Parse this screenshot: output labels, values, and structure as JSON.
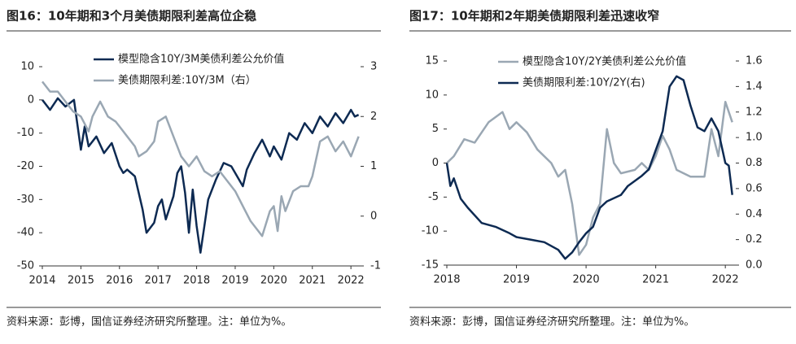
{
  "chart_data": [
    {
      "type": "line",
      "title": "图16：10年期和3个月美债期限利差高位企稳",
      "source": "资料来源：彭博，国信证券经济研究所整理。注：单位为%。",
      "xlim": [
        2014,
        2022.25
      ],
      "xticks": [
        2014,
        2015,
        2016,
        2017,
        2018,
        2019,
        2020,
        2021,
        2022
      ],
      "ylim": [
        -50,
        10
      ],
      "yticks": [
        10,
        0,
        -10,
        -20,
        -30,
        -40,
        -50
      ],
      "y2lim": [
        -1,
        3
      ],
      "y2ticks": [
        3,
        2,
        1,
        0,
        -1
      ],
      "series": [
        {
          "name": "模型隐含10Y/3M美债利差公允价值",
          "color": "#0d2a52",
          "x": [
            2014.0,
            2014.2,
            2014.4,
            2014.6,
            2014.82,
            2015.0,
            2015.1,
            2015.2,
            2015.4,
            2015.6,
            2015.8,
            2016.0,
            2016.1,
            2016.2,
            2016.4,
            2016.6,
            2016.7,
            2016.9,
            2017.0,
            2017.1,
            2017.2,
            2017.4,
            2017.5,
            2017.6,
            2017.7,
            2017.8,
            2017.9,
            2018.0,
            2018.1,
            2018.2,
            2018.3,
            2018.5,
            2018.7,
            2018.9,
            2019.0,
            2019.2,
            2019.3,
            2019.5,
            2019.7,
            2019.9,
            2020.0,
            2020.2,
            2020.4,
            2020.6,
            2020.8,
            2021.0,
            2021.2,
            2021.4,
            2021.6,
            2021.8,
            2022.0,
            2022.1,
            2022.2
          ],
          "values": [
            0,
            -3,
            0.5,
            -2,
            0,
            -15,
            -8,
            -14,
            -11,
            -16,
            -13,
            -20,
            -22,
            -21,
            -23,
            -33,
            -40,
            -37,
            -32,
            -30,
            -36,
            -29,
            -22,
            -20,
            -28,
            -40,
            -27,
            -38,
            -46,
            -38,
            -30,
            -24,
            -19,
            -20,
            -22,
            -26,
            -21,
            -16,
            -12,
            -17,
            -14,
            -18,
            -10,
            -12,
            -7,
            -10,
            -5,
            -8,
            -4,
            -7,
            -3,
            -5,
            -4.5
          ]
        },
        {
          "name": "美债期限利差:10Y/3M（右）",
          "color": "#9aa7b3",
          "axis": "y2",
          "x": [
            2014.0,
            2014.2,
            2014.4,
            2014.6,
            2014.8,
            2015.0,
            2015.2,
            2015.3,
            2015.5,
            2015.7,
            2015.9,
            2016.0,
            2016.2,
            2016.4,
            2016.5,
            2016.7,
            2016.9,
            2017.0,
            2017.2,
            2017.4,
            2017.6,
            2017.8,
            2018.0,
            2018.2,
            2018.4,
            2018.6,
            2018.8,
            2019.0,
            2019.2,
            2019.4,
            2019.6,
            2019.7,
            2019.9,
            2020.0,
            2020.1,
            2020.2,
            2020.3,
            2020.5,
            2020.7,
            2020.9,
            2021.0,
            2021.2,
            2021.4,
            2021.6,
            2021.8,
            2022.0,
            2022.1,
            2022.2
          ],
          "values": [
            2.7,
            2.5,
            2.5,
            2.3,
            2.1,
            2.0,
            1.7,
            2.0,
            2.3,
            2.0,
            1.9,
            1.8,
            1.6,
            1.4,
            1.2,
            1.3,
            1.5,
            1.9,
            2.0,
            1.6,
            1.2,
            1.0,
            1.2,
            0.9,
            0.8,
            0.9,
            0.7,
            0.5,
            0.2,
            -0.1,
            -0.3,
            -0.4,
            0.1,
            0.2,
            -0.3,
            0.4,
            0.1,
            0.5,
            0.6,
            0.6,
            0.8,
            1.5,
            1.6,
            1.3,
            1.5,
            1.2,
            1.4,
            1.6
          ]
        }
      ]
    },
    {
      "type": "line",
      "title": "图17：10年期和2年期美债期限利差迅速收窄",
      "source": "资料来源：彭博，国信证券经济研究所整理。注：单位为%。",
      "xlim": [
        2018,
        2022.15
      ],
      "xticks": [
        2018,
        2019,
        2020,
        2021,
        2022
      ],
      "ylim": [
        -15,
        15
      ],
      "yticks": [
        15,
        10,
        5,
        0,
        -5,
        -10,
        -15
      ],
      "y2lim": [
        0,
        1.6
      ],
      "y2ticks": [
        1.6,
        1.4,
        1.2,
        {
          "value": 1,
          "label": "1.0"
        },
        0.8,
        0.6,
        0.4,
        0.2,
        {
          "value": 0,
          "label": "0.0"
        }
      ],
      "series": [
        {
          "name": "模型隐含10Y/2Y美债利差公允价值",
          "color": "#9aa7b3",
          "x": [
            2018.0,
            2018.1,
            2018.25,
            2018.4,
            2018.6,
            2018.8,
            2018.9,
            2019.0,
            2019.15,
            2019.3,
            2019.5,
            2019.6,
            2019.7,
            2019.8,
            2019.9,
            2020.0,
            2020.1,
            2020.2,
            2020.3,
            2020.4,
            2020.5,
            2020.7,
            2020.8,
            2020.9,
            2021.0,
            2021.1,
            2021.2,
            2021.3,
            2021.5,
            2021.7,
            2021.8,
            2021.9,
            2022.0,
            2022.1
          ],
          "values": [
            0,
            1,
            3.5,
            3,
            6,
            7.5,
            5,
            6,
            4.5,
            2,
            0,
            -2,
            -1,
            -6,
            -13.5,
            -12,
            -8,
            -6,
            5,
            0,
            -1.5,
            -1,
            0,
            -1,
            1,
            4,
            2,
            -1,
            -2,
            -2,
            5,
            1,
            9,
            6
          ]
        },
        {
          "name": "美债期限利差:10Y/2Y(右)",
          "color": "#0d2a52",
          "axis": "y2",
          "x": [
            2018.0,
            2018.05,
            2018.1,
            2018.2,
            2018.3,
            2018.5,
            2018.7,
            2018.9,
            2019.0,
            2019.2,
            2019.4,
            2019.6,
            2019.7,
            2019.8,
            2019.9,
            2020.0,
            2020.1,
            2020.2,
            2020.3,
            2020.5,
            2020.6,
            2020.8,
            2020.9,
            2021.0,
            2021.1,
            2021.2,
            2021.3,
            2021.4,
            2021.5,
            2021.6,
            2021.7,
            2021.8,
            2021.9,
            2022.0,
            2022.05,
            2022.1
          ],
          "values": [
            0.8,
            0.62,
            0.68,
            0.52,
            0.45,
            0.33,
            0.3,
            0.25,
            0.22,
            0.2,
            0.18,
            0.12,
            0.05,
            0.1,
            0.18,
            0.25,
            0.3,
            0.45,
            0.5,
            0.55,
            0.62,
            0.7,
            0.75,
            0.9,
            1.05,
            1.4,
            1.48,
            1.45,
            1.25,
            1.08,
            1.05,
            1.15,
            1.05,
            0.8,
            0.78,
            0.55
          ]
        }
      ]
    }
  ]
}
